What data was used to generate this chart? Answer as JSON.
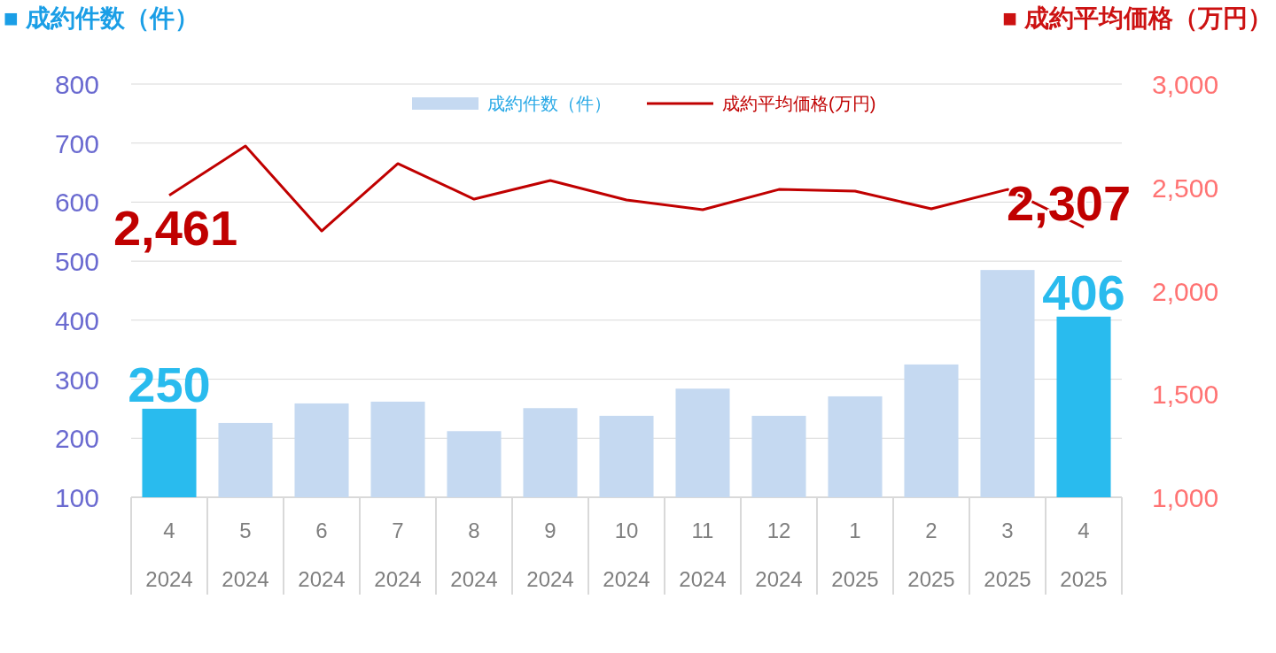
{
  "chart_data": {
    "type": "bar",
    "ylabel": "■ 成約件数（件）",
    "y2label": "■ 成約平均価格（万円）",
    "categories": [
      "4\n2024",
      "5\n2024",
      "6\n2024",
      "7\n2024",
      "8\n2024",
      "9\n2024",
      "10\n2024",
      "11\n2024",
      "12\n2024",
      "1\n2025",
      "2\n2025",
      "3\n2025",
      "4\n2025"
    ],
    "series": [
      {
        "name": "成約件数（件）",
        "color": "#c5d9f1",
        "colors": [
          "#29bbee",
          "#c5d9f1",
          "#c5d9f1",
          "#c5d9f1",
          "#c5d9f1",
          "#c5d9f1",
          "#c5d9f1",
          "#c5d9f1",
          "#c5d9f1",
          "#c5d9f1",
          "#c5d9f1",
          "#c5d9f1",
          "#29bbee"
        ],
        "values": [
          250,
          226,
          259,
          262,
          212,
          251,
          238,
          284,
          238,
          271,
          325,
          485,
          406
        ],
        "value_labels": [
          "250",
          null,
          null,
          null,
          null,
          null,
          null,
          null,
          null,
          null,
          null,
          null,
          "406"
        ]
      },
      {
        "type": "line",
        "axis": "y2",
        "name": "成約平均価格(万円)",
        "color": "#c00000",
        "values": [
          2461,
          2700,
          2289,
          2615,
          2443,
          2533,
          2439,
          2392,
          2490,
          2482,
          2396,
          2490,
          2307
        ],
        "value_labels": [
          "2,461",
          null,
          null,
          null,
          null,
          null,
          null,
          null,
          null,
          null,
          null,
          null,
          "2,307"
        ]
      }
    ],
    "ylim": [
      100,
      800
    ],
    "yticks": [
      100,
      200,
      300,
      400,
      500,
      600,
      700,
      800
    ],
    "y2lim": [
      1000,
      3000
    ],
    "y2ticks": [
      {
        "value": 1000,
        "label": "1,000"
      },
      {
        "value": 1500,
        "label": "1,500"
      },
      {
        "value": 2000,
        "label": "2,000"
      },
      {
        "value": 2500,
        "label": "2,500"
      },
      {
        "value": 3000,
        "label": "3,000"
      }
    ],
    "grid": "y",
    "legend": "top"
  }
}
